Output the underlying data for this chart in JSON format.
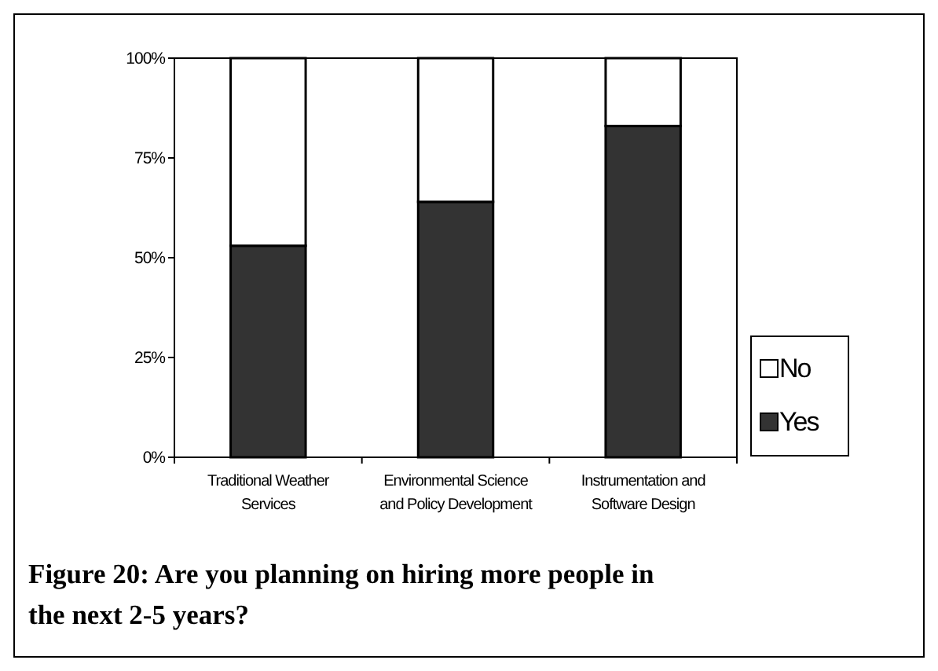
{
  "chart_data": {
    "type": "bar",
    "stacked": true,
    "title": "Figure 20: Are you planning on hiring more people in the next 2-5 years?",
    "categories": [
      "Traditional Weather Services",
      "Environmental Science and Policy Development",
      "Instrumentation and Software Design"
    ],
    "series": [
      {
        "name": "Yes",
        "color": "#333333",
        "values": [
          53,
          64,
          83
        ]
      },
      {
        "name": "No",
        "color": "#ffffff",
        "values": [
          47,
          36,
          17
        ]
      }
    ],
    "ylim": [
      0,
      100
    ],
    "yticks": [
      {
        "value": 0,
        "label": "0%"
      },
      {
        "value": 25,
        "label": "25%"
      },
      {
        "value": 50,
        "label": "50%"
      },
      {
        "value": 75,
        "label": "75%"
      },
      {
        "value": 100,
        "label": "100%"
      }
    ],
    "grid": false,
    "legend": "right"
  }
}
